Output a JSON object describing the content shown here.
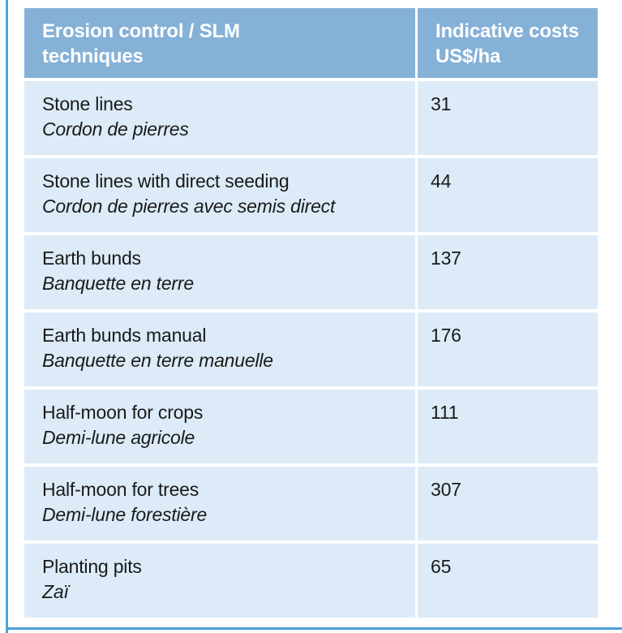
{
  "colors": {
    "frame_blue": "#4ba1d9",
    "header_bg": "#85b1d7",
    "row_bg": "#dcebf7",
    "header_text": "#ffffff",
    "body_text": "#1a1a1a"
  },
  "table": {
    "header": {
      "col1": "Erosion control / SLM techniques",
      "col2": "Indicative costs US$/ha"
    },
    "rows": [
      {
        "en": "Stone lines",
        "fr": "Cordon de pierres",
        "cost": "31"
      },
      {
        "en": "Stone lines with direct seeding",
        "fr": "Cordon de pierres avec semis direct",
        "cost": "44"
      },
      {
        "en": "Earth bunds",
        "fr": "Banquette en terre",
        "cost": "137"
      },
      {
        "en": "Earth bunds manual",
        "fr": "Banquette en terre manuelle",
        "cost": "176"
      },
      {
        "en": "Half-moon for crops",
        "fr": "Demi-lune agricole",
        "cost": "111"
      },
      {
        "en": "Half-moon for trees",
        "fr": "Demi-lune forestière",
        "cost": "307"
      },
      {
        "en": "Planting pits",
        "fr": "Zaï",
        "cost": "65"
      }
    ]
  }
}
